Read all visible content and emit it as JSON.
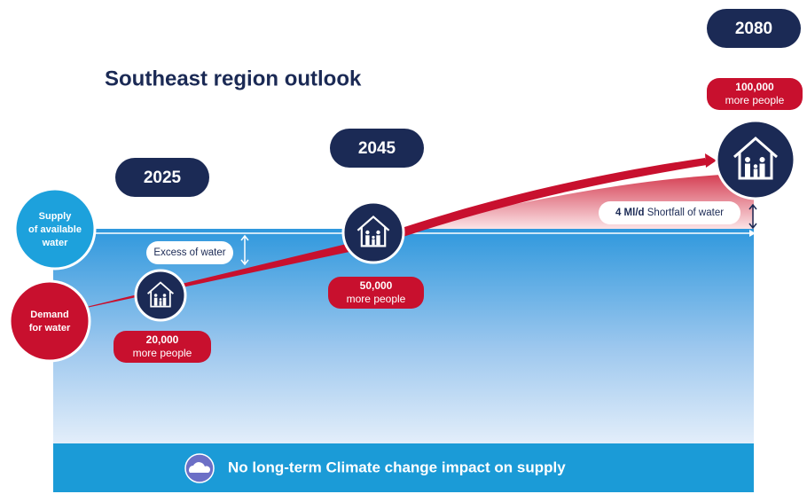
{
  "title": "Southeast region outlook",
  "supply_label": [
    "Supply",
    "of available",
    "water"
  ],
  "demand_label": [
    "Demand",
    "for water"
  ],
  "excess_label": "Excess of water",
  "shortfall": {
    "amount": "4 Ml/d",
    "label": "Shortfall of water"
  },
  "milestones": [
    {
      "year": "2025",
      "people": "20,000",
      "people_label": "more people"
    },
    {
      "year": "2045",
      "people": "50,000",
      "people_label": "more people"
    },
    {
      "year": "2080",
      "people": "100,000",
      "people_label": "more people"
    }
  ],
  "footer": "No long-term Climate change impact on supply"
}
